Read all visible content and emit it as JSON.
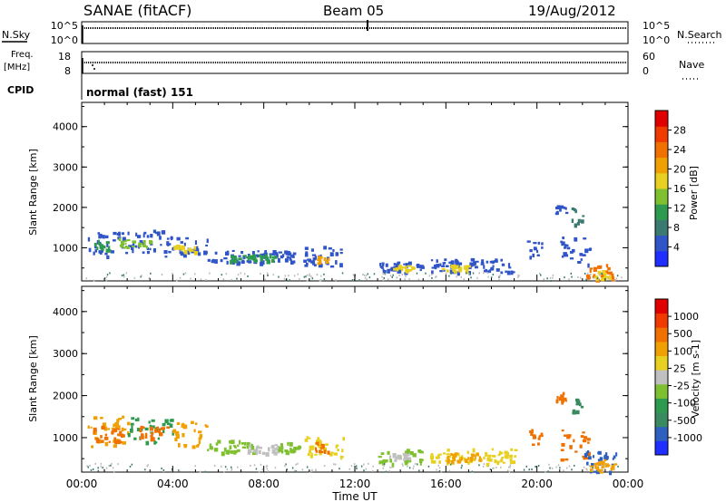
{
  "header": {
    "station": "SANAE (fitACF)",
    "beam": "Beam 05",
    "date": "19/Aug/2012"
  },
  "top_panels": {
    "nsky_label": "N.Sky",
    "nsearch_label": "N.Search",
    "nsky_ticks": [
      "10^5",
      "10^0"
    ],
    "nsearch_ticks": [
      "10^5",
      "10^0"
    ],
    "freq_label_1": "Freq.",
    "freq_label_2": "[MHz]",
    "freq_ticks": [
      "18",
      "8"
    ],
    "nave_label": "Nave",
    "nave_ticks": [
      "60",
      "0"
    ],
    "cpid_label": "CPID",
    "cpid_value": "normal (fast) 151"
  },
  "chart_data": [
    {
      "type": "heatmap",
      "title": "",
      "xlabel": "",
      "ylabel": "Slant Range [km]",
      "xlim": [
        0,
        24
      ],
      "ylim": [
        180,
        4600
      ],
      "yticks": [
        "1000",
        "2000",
        "3000",
        "4000"
      ],
      "colorbar": {
        "label": "Power [dB]",
        "ticks": [
          "4",
          "8",
          "12",
          "16",
          "20",
          "24",
          "28"
        ],
        "colors": [
          "#1e2fff",
          "#3055c8",
          "#3a7a70",
          "#2e9a50",
          "#7fc030",
          "#e8d020",
          "#f0a000",
          "#f07000",
          "#f03a00",
          "#e00000"
        ]
      },
      "scatter_regions": [
        {
          "t0": 0.2,
          "t1": 1.3,
          "r0": 800,
          "r1": 1500,
          "c": "#3055c8"
        },
        {
          "t0": 0.5,
          "t1": 1.2,
          "r0": 950,
          "r1": 1200,
          "c": "#2e9a50"
        },
        {
          "t0": 1.3,
          "t1": 3.5,
          "r0": 900,
          "r1": 1450,
          "c": "#3055c8"
        },
        {
          "t0": 1.6,
          "t1": 3.0,
          "r0": 1000,
          "r1": 1250,
          "c": "#7fc030"
        },
        {
          "t0": 3.5,
          "t1": 5.5,
          "r0": 800,
          "r1": 1300,
          "c": "#3055c8"
        },
        {
          "t0": 4.0,
          "t1": 5.0,
          "r0": 900,
          "r1": 1100,
          "c": "#e8d020"
        },
        {
          "t0": 5.5,
          "t1": 9.5,
          "r0": 650,
          "r1": 950,
          "c": "#3055c8"
        },
        {
          "t0": 6.5,
          "t1": 8.5,
          "r0": 680,
          "r1": 850,
          "c": "#2e9a50"
        },
        {
          "t0": 9.7,
          "t1": 11.5,
          "r0": 550,
          "r1": 1050,
          "c": "#3055c8"
        },
        {
          "t0": 10.3,
          "t1": 10.8,
          "r0": 600,
          "r1": 800,
          "c": "#f0a000"
        },
        {
          "t0": 13.0,
          "t1": 15.0,
          "r0": 400,
          "r1": 750,
          "c": "#3055c8"
        },
        {
          "t0": 13.6,
          "t1": 14.6,
          "r0": 450,
          "r1": 600,
          "c": "#e8d020"
        },
        {
          "t0": 15.3,
          "t1": 19.0,
          "r0": 400,
          "r1": 750,
          "c": "#3055c8"
        },
        {
          "t0": 15.8,
          "t1": 17.0,
          "r0": 450,
          "r1": 600,
          "c": "#e8d020"
        },
        {
          "t0": 19.5,
          "t1": 20.2,
          "r0": 800,
          "r1": 1200,
          "c": "#3055c8"
        },
        {
          "t0": 20.8,
          "t1": 21.3,
          "r0": 1800,
          "r1": 2100,
          "c": "#3055c8"
        },
        {
          "t0": 21.5,
          "t1": 22.0,
          "r0": 1600,
          "r1": 2000,
          "c": "#3a7a70"
        },
        {
          "t0": 21.0,
          "t1": 22.3,
          "r0": 500,
          "r1": 1300,
          "c": "#3055c8"
        },
        {
          "t0": 22.0,
          "t1": 23.5,
          "r0": 200,
          "r1": 600,
          "c": "#f07000"
        },
        {
          "t0": 22.5,
          "t1": 23.2,
          "r0": 250,
          "r1": 450,
          "c": "#e8d020"
        }
      ]
    },
    {
      "type": "heatmap",
      "title": "",
      "xlabel": "Time UT",
      "ylabel": "Slant Range [km]",
      "xlim": [
        0,
        24
      ],
      "ylim": [
        180,
        4600
      ],
      "xticks": [
        "00:00",
        "04:00",
        "08:00",
        "12:00",
        "16:00",
        "20:00",
        "00:00"
      ],
      "yticks": [
        "1000",
        "2000",
        "3000",
        "4000"
      ],
      "colorbar": {
        "label": "Velocity [m s-1]",
        "ticks": [
          "1000",
          "500",
          "100",
          "25",
          "-25",
          "-100",
          "-500",
          "-1000"
        ],
        "colors": [
          "#1e2fff",
          "#2e60c0",
          "#3a8a60",
          "#2e9a50",
          "#7fc030",
          "#c0c0c0",
          "#e8d020",
          "#f0a000",
          "#f07000",
          "#f03a00",
          "#e00000"
        ]
      },
      "scatter_regions": [
        {
          "t0": 0.2,
          "t1": 2.0,
          "r0": 800,
          "r1": 1550,
          "c": "#f0a000"
        },
        {
          "t0": 0.5,
          "t1": 1.8,
          "r0": 900,
          "r1": 1300,
          "c": "#f07000"
        },
        {
          "t0": 2.0,
          "t1": 4.0,
          "r0": 900,
          "r1": 1500,
          "c": "#2e9a50"
        },
        {
          "t0": 2.5,
          "t1": 3.8,
          "r0": 1000,
          "r1": 1300,
          "c": "#f07000"
        },
        {
          "t0": 4.0,
          "t1": 5.5,
          "r0": 800,
          "r1": 1400,
          "c": "#f0a000"
        },
        {
          "t0": 5.5,
          "t1": 7.5,
          "r0": 650,
          "r1": 950,
          "c": "#7fc030"
        },
        {
          "t0": 7.2,
          "t1": 8.6,
          "r0": 650,
          "r1": 900,
          "c": "#c0c0c0"
        },
        {
          "t0": 8.6,
          "t1": 9.6,
          "r0": 650,
          "r1": 900,
          "c": "#7fc030"
        },
        {
          "t0": 9.7,
          "t1": 11.5,
          "r0": 550,
          "r1": 1050,
          "c": "#e8d020"
        },
        {
          "t0": 10.2,
          "t1": 10.8,
          "r0": 650,
          "r1": 950,
          "c": "#f07000"
        },
        {
          "t0": 13.0,
          "t1": 15.0,
          "r0": 400,
          "r1": 750,
          "c": "#7fc030"
        },
        {
          "t0": 13.5,
          "t1": 14.5,
          "r0": 450,
          "r1": 650,
          "c": "#c0c0c0"
        },
        {
          "t0": 15.3,
          "t1": 19.0,
          "r0": 400,
          "r1": 750,
          "c": "#e8d020"
        },
        {
          "t0": 16.0,
          "t1": 17.5,
          "r0": 450,
          "r1": 650,
          "c": "#f0a000"
        },
        {
          "t0": 19.5,
          "t1": 20.2,
          "r0": 800,
          "r1": 1250,
          "c": "#f07000"
        },
        {
          "t0": 20.8,
          "t1": 21.3,
          "r0": 1800,
          "r1": 2100,
          "c": "#f07000"
        },
        {
          "t0": 21.5,
          "t1": 22.0,
          "r0": 1600,
          "r1": 1950,
          "c": "#3a8a60"
        },
        {
          "t0": 21.0,
          "t1": 22.3,
          "r0": 500,
          "r1": 1300,
          "c": "#f07000"
        },
        {
          "t0": 22.0,
          "t1": 23.5,
          "r0": 200,
          "r1": 700,
          "c": "#2e60c0"
        },
        {
          "t0": 22.3,
          "t1": 23.4,
          "r0": 250,
          "r1": 550,
          "c": "#f0a000"
        }
      ]
    }
  ]
}
